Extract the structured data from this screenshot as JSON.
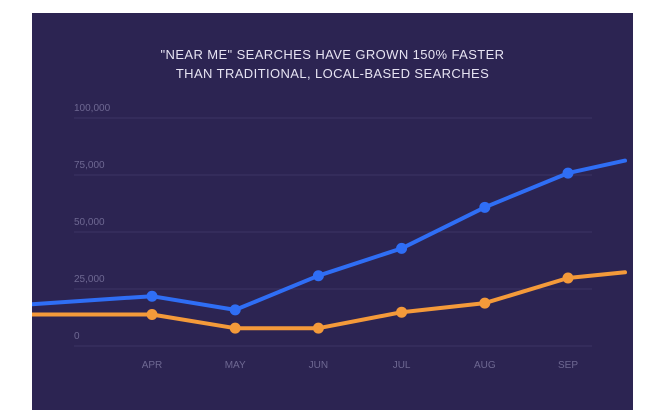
{
  "colors": {
    "background": "#2c2452",
    "near_me": "#2f6ef5",
    "local": "#f49a3a",
    "grid": "#3d3564",
    "tick_text": "#6e6892",
    "title_text": "#e6e3f2"
  },
  "chart_data": {
    "type": "line",
    "title_lines": [
      "\"NEAR ME\" SEARCHES HAVE GROWN 150% FASTER",
      "THAN TRADITIONAL, LOCAL-BASED SEARCHES"
    ],
    "categories": [
      "APR",
      "MAY",
      "JUN",
      "JUL",
      "AUG",
      "SEP"
    ],
    "yticks": [
      0,
      25000,
      50000,
      75000,
      100000
    ],
    "ytick_labels": [
      "0",
      "25,000",
      "50,000",
      "75,000",
      "100,000"
    ],
    "ylim": [
      0,
      100000
    ],
    "grid": true,
    "legend": "none",
    "series": [
      {
        "key": "near_me",
        "values": [
          17000,
          11000,
          26000,
          38000,
          56000,
          71000
        ],
        "lead_in": 13500,
        "tail_out": 76500
      },
      {
        "key": "local",
        "values": [
          9000,
          3000,
          3000,
          10000,
          14000,
          25000
        ],
        "lead_in": 9000,
        "tail_out": 27500
      }
    ]
  }
}
